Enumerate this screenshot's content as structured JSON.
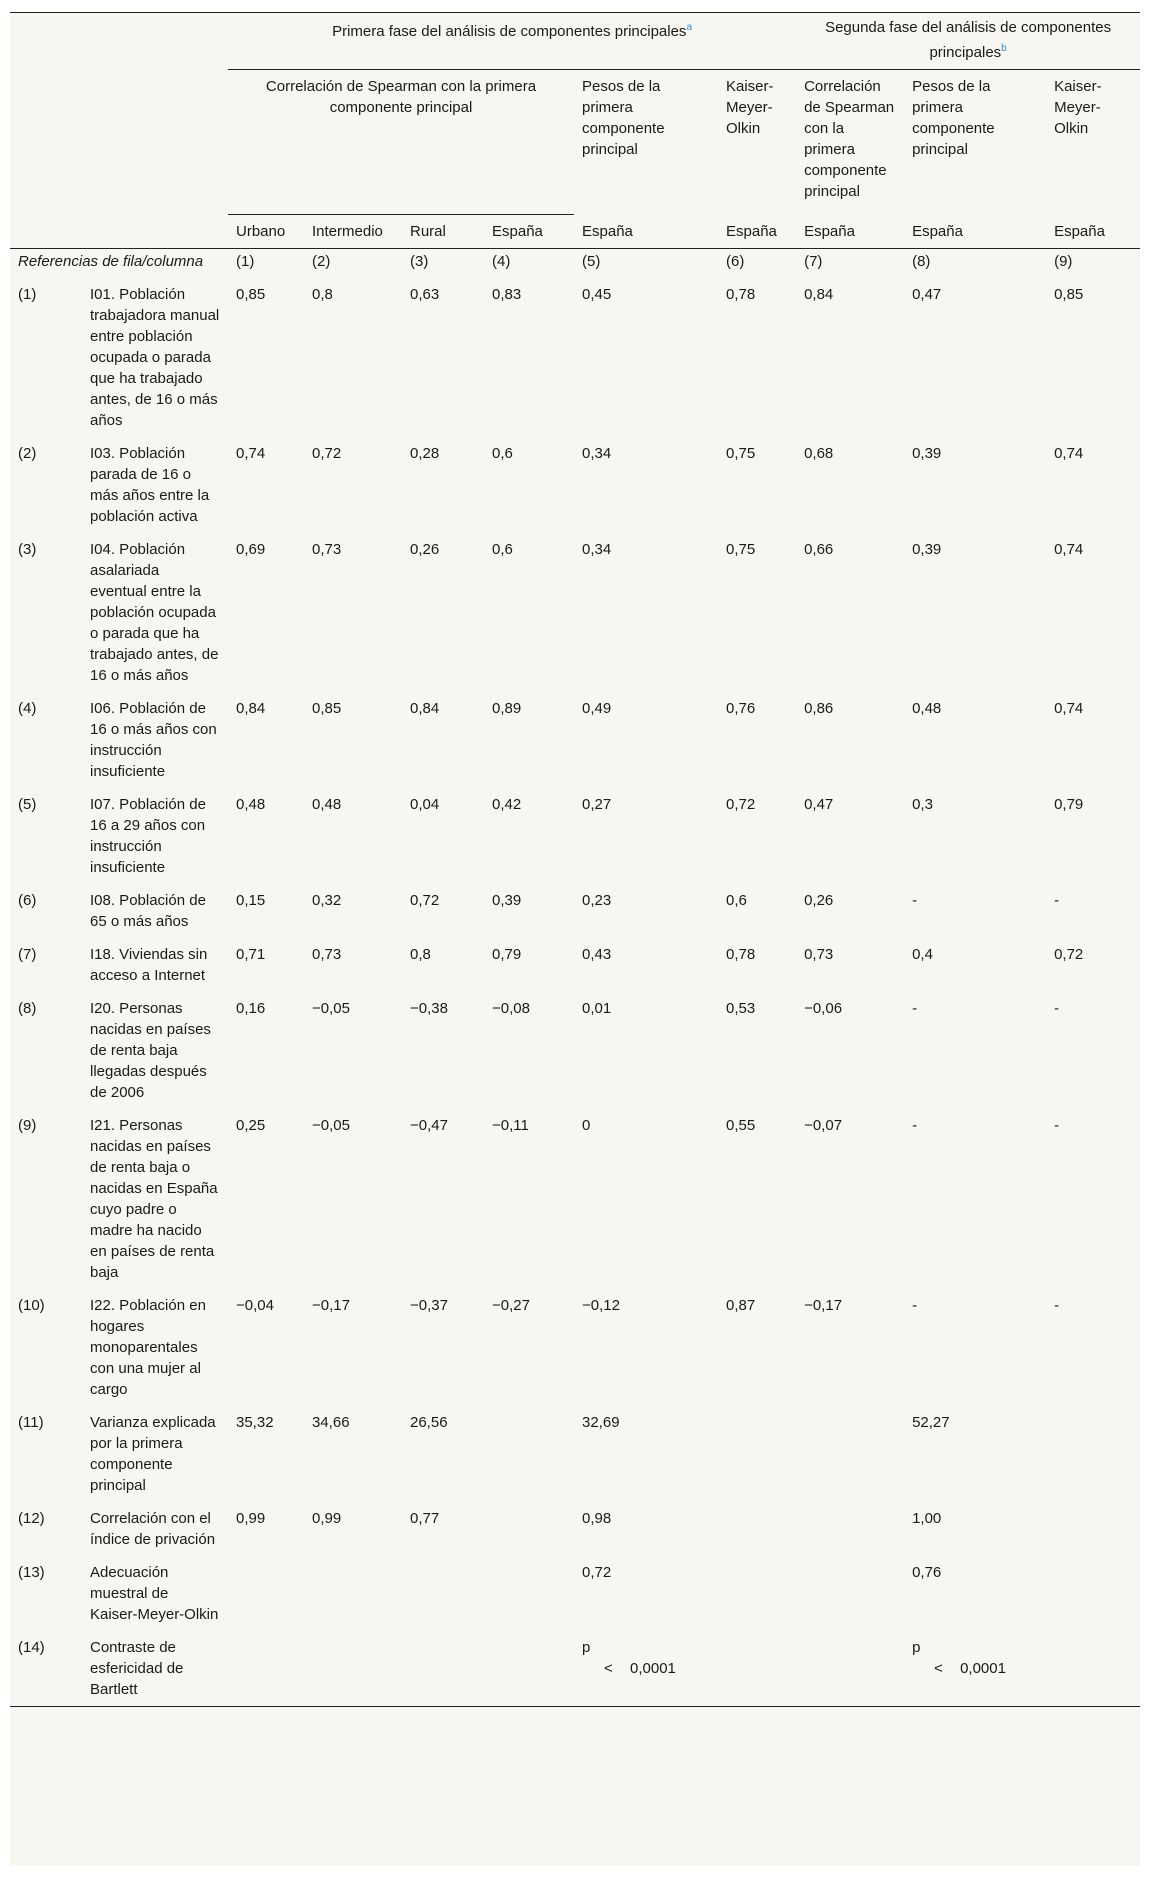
{
  "header": {
    "phase1": "Primera fase del análisis de componentes principales",
    "phase1_note": "a",
    "phase2": "Segunda fase del análisis de componentes principales",
    "phase2_note": "b",
    "spearman_group": "Correlación de Spearman con la primera componente principal",
    "weights1": "Pesos de la primera componente principal",
    "kmo1": "Kaiser-Meyer-Olkin",
    "spearman2": "Correlación de Spearman con la primera componente principal",
    "weights2": "Pesos de la primera componente principal",
    "kmo2": "Kaiser-Meyer-Olkin",
    "sub": [
      "Urbano",
      "Intermedio",
      "Rural",
      "España",
      "España",
      "España",
      "España",
      "España",
      "España"
    ],
    "ref_label": "Referencias de fila/columna",
    "col_refs": [
      "(1)",
      "(2)",
      "(3)",
      "(4)",
      "(5)",
      "(6)",
      "(7)",
      "(8)",
      "(9)"
    ]
  },
  "rows": [
    {
      "ref": "(1)",
      "label": "I01. Población trabajadora manual entre población ocupada o parada que ha trabajado antes, de 16 o más años",
      "v": [
        "0,85",
        "0,8",
        "0,63",
        "0,83",
        "0,45",
        "0,78",
        "0,84",
        "0,47",
        "0,85"
      ]
    },
    {
      "ref": "(2)",
      "label": "I03. Población parada de 16 o más años entre la población activa",
      "v": [
        "0,74",
        "0,72",
        "0,28",
        "0,6",
        "0,34",
        "0,75",
        "0,68",
        "0,39",
        "0,74"
      ]
    },
    {
      "ref": "(3)",
      "label": "I04. Población asalariada eventual entre la población ocupada o parada que ha trabajado antes, de 16 o más años",
      "v": [
        "0,69",
        "0,73",
        "0,26",
        "0,6",
        "0,34",
        "0,75",
        "0,66",
        "0,39",
        "0,74"
      ]
    },
    {
      "ref": "(4)",
      "label": "I06. Población de 16 o más años con instrucción insuficiente",
      "v": [
        "0,84",
        "0,85",
        "0,84",
        "0,89",
        "0,49",
        "0,76",
        "0,86",
        "0,48",
        "0,74"
      ]
    },
    {
      "ref": "(5)",
      "label": "I07. Población de 16 a 29 años con instrucción insuficiente",
      "v": [
        "0,48",
        "0,48",
        "0,04",
        "0,42",
        "0,27",
        "0,72",
        "0,47",
        "0,3",
        "0,79"
      ]
    },
    {
      "ref": "(6)",
      "label": "I08. Población de 65 o más años",
      "v": [
        "0,15",
        "0,32",
        "0,72",
        "0,39",
        "0,23",
        "0,6",
        "0,26",
        "-",
        "-"
      ]
    },
    {
      "ref": "(7)",
      "label": "I18. Viviendas sin acceso a Internet",
      "v": [
        "0,71",
        "0,73",
        "0,8",
        "0,79",
        "0,43",
        "0,78",
        "0,73",
        "0,4",
        "0,72"
      ]
    },
    {
      "ref": "(8)",
      "label": "I20. Personas nacidas en países de renta baja llegadas después de 2006",
      "v": [
        "0,16",
        "−0,05",
        "−0,38",
        "−0,08",
        "0,01",
        "0,53",
        "−0,06",
        "-",
        "-"
      ]
    },
    {
      "ref": "(9)",
      "label": "I21. Personas nacidas en países de renta baja o nacidas en España cuyo padre o madre ha nacido en países de renta baja",
      "v": [
        "0,25",
        "−0,05",
        "−0,47",
        "−0,11",
        "0",
        "0,55",
        "−0,07",
        "-",
        "-"
      ]
    },
    {
      "ref": "(10)",
      "label": "I22. Población en hogares monoparentales con una mujer al cargo",
      "v": [
        "−0,04",
        "−0,17",
        "−0,37",
        "−0,27",
        "−0,12",
        "0,87",
        "−0,17",
        "-",
        "-"
      ]
    },
    {
      "ref": "(11)",
      "label": "Varianza explicada por la primera componente principal",
      "v": [
        "35,32",
        "34,66",
        "26,56",
        "",
        "32,69",
        "",
        "",
        "52,27",
        ""
      ]
    },
    {
      "ref": "(12)",
      "label": "Correlación con el índice de privación",
      "v": [
        "0,99",
        "0,99",
        "0,77",
        "",
        "0,98",
        "",
        "",
        "1,00",
        ""
      ]
    },
    {
      "ref": "(13)",
      "label": "Adecuación muestral de Kaiser-Meyer-Olkin",
      "v": [
        "",
        "",
        "",
        "",
        "0,72",
        "",
        "",
        "0,76",
        ""
      ]
    }
  ],
  "bartlett": {
    "ref": "(14)",
    "label": "Contraste de esfericidad de Bartlett",
    "p": "p",
    "lt": "<",
    "value": "0,0001"
  }
}
